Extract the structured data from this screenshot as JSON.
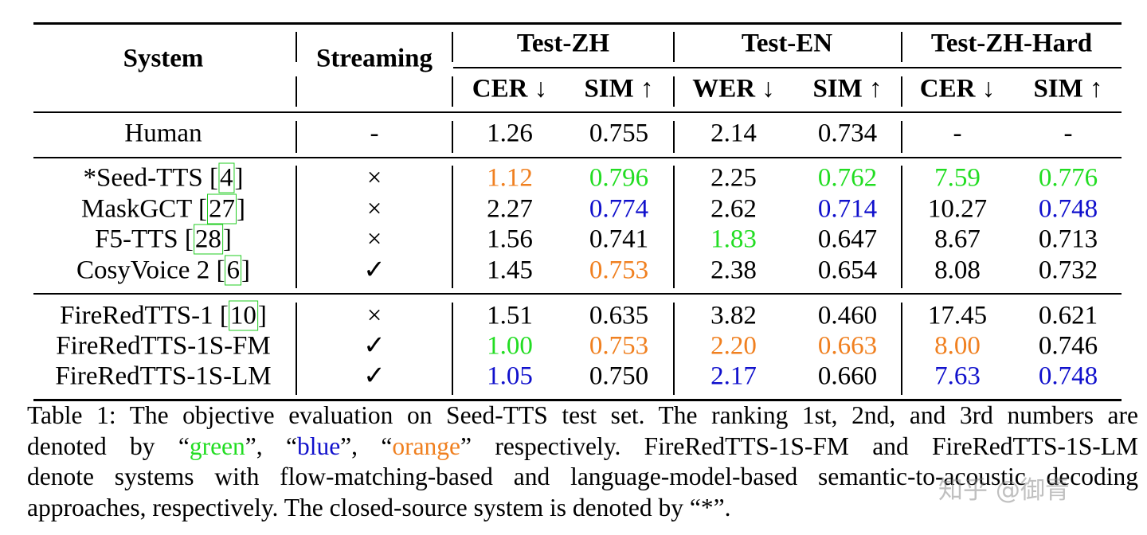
{
  "table": {
    "headers": {
      "system": "System",
      "streaming": "Streaming",
      "groups": [
        "Test-ZH",
        "Test-EN",
        "Test-ZH-Hard"
      ],
      "metrics": [
        "CER ↓",
        "SIM ↑",
        "WER ↓",
        "SIM ↑",
        "CER ↓",
        "SIM ↑"
      ]
    },
    "groups": [
      {
        "rows": [
          {
            "system": "Human",
            "ref": "",
            "streaming": "-",
            "values": [
              "1.26",
              "0.755",
              "2.14",
              "0.734",
              "-",
              "-"
            ],
            "colors": [
              "",
              "",
              "",
              "",
              "",
              ""
            ]
          }
        ]
      },
      {
        "rows": [
          {
            "system": "*Seed-TTS",
            "ref": "4",
            "streaming": "×",
            "values": [
              "1.12",
              "0.796",
              "2.25",
              "0.762",
              "7.59",
              "0.776"
            ],
            "colors": [
              "orange",
              "green",
              "",
              "green",
              "green",
              "green"
            ]
          },
          {
            "system": "MaskGCT",
            "ref": "27",
            "streaming": "×",
            "values": [
              "2.27",
              "0.774",
              "2.62",
              "0.714",
              "10.27",
              "0.748"
            ],
            "colors": [
              "",
              "blue",
              "",
              "blue",
              "",
              "blue"
            ]
          },
          {
            "system": "F5-TTS",
            "ref": "28",
            "streaming": "×",
            "values": [
              "1.56",
              "0.741",
              "1.83",
              "0.647",
              "8.67",
              "0.713"
            ],
            "colors": [
              "",
              "",
              "green",
              "",
              "",
              ""
            ]
          },
          {
            "system": "CosyVoice 2",
            "ref": "6",
            "streaming": "✓",
            "values": [
              "1.45",
              "0.753",
              "2.38",
              "0.654",
              "8.08",
              "0.732"
            ],
            "colors": [
              "",
              "orange",
              "",
              "",
              "",
              ""
            ]
          }
        ]
      },
      {
        "rows": [
          {
            "system": "FireRedTTS-1",
            "ref": "10",
            "streaming": "×",
            "values": [
              "1.51",
              "0.635",
              "3.82",
              "0.460",
              "17.45",
              "0.621"
            ],
            "colors": [
              "",
              "",
              "",
              "",
              "",
              ""
            ]
          },
          {
            "system": "FireRedTTS-1S-FM",
            "ref": "",
            "streaming": "✓",
            "values": [
              "1.00",
              "0.753",
              "2.20",
              "0.663",
              "8.00",
              "0.746"
            ],
            "colors": [
              "green",
              "orange",
              "orange",
              "orange",
              "orange",
              ""
            ]
          },
          {
            "system": "FireRedTTS-1S-LM",
            "ref": "",
            "streaming": "✓",
            "values": [
              "1.05",
              "0.750",
              "2.17",
              "0.660",
              "7.63",
              "0.748"
            ],
            "colors": [
              "blue",
              "",
              "blue",
              "",
              "blue",
              "blue"
            ]
          }
        ]
      }
    ]
  },
  "caption": {
    "line1": "Table 1: The objective evaluation on Seed-TTS test set. The ranking 1st, 2nd, and 3rd numbers are",
    "line2_a": "denoted by “",
    "green_word": "green",
    "line2_b": "”, “",
    "blue_word": "blue",
    "line2_c": "”, “",
    "orange_word": "orange",
    "line2_d": "” respectively. FireRedTTS-1S-FM and FireRedTTS-1S-LM",
    "line3": "denote systems with flow-matching-based and language-model-based semantic-to-acoustic decoding",
    "line4": "approaches, respectively. The closed-source system is denoted by “*”."
  },
  "watermark": "知乎 @御青",
  "colors": {
    "green": "#22dd22",
    "blue": "#1010cc",
    "orange": "#f08020"
  }
}
